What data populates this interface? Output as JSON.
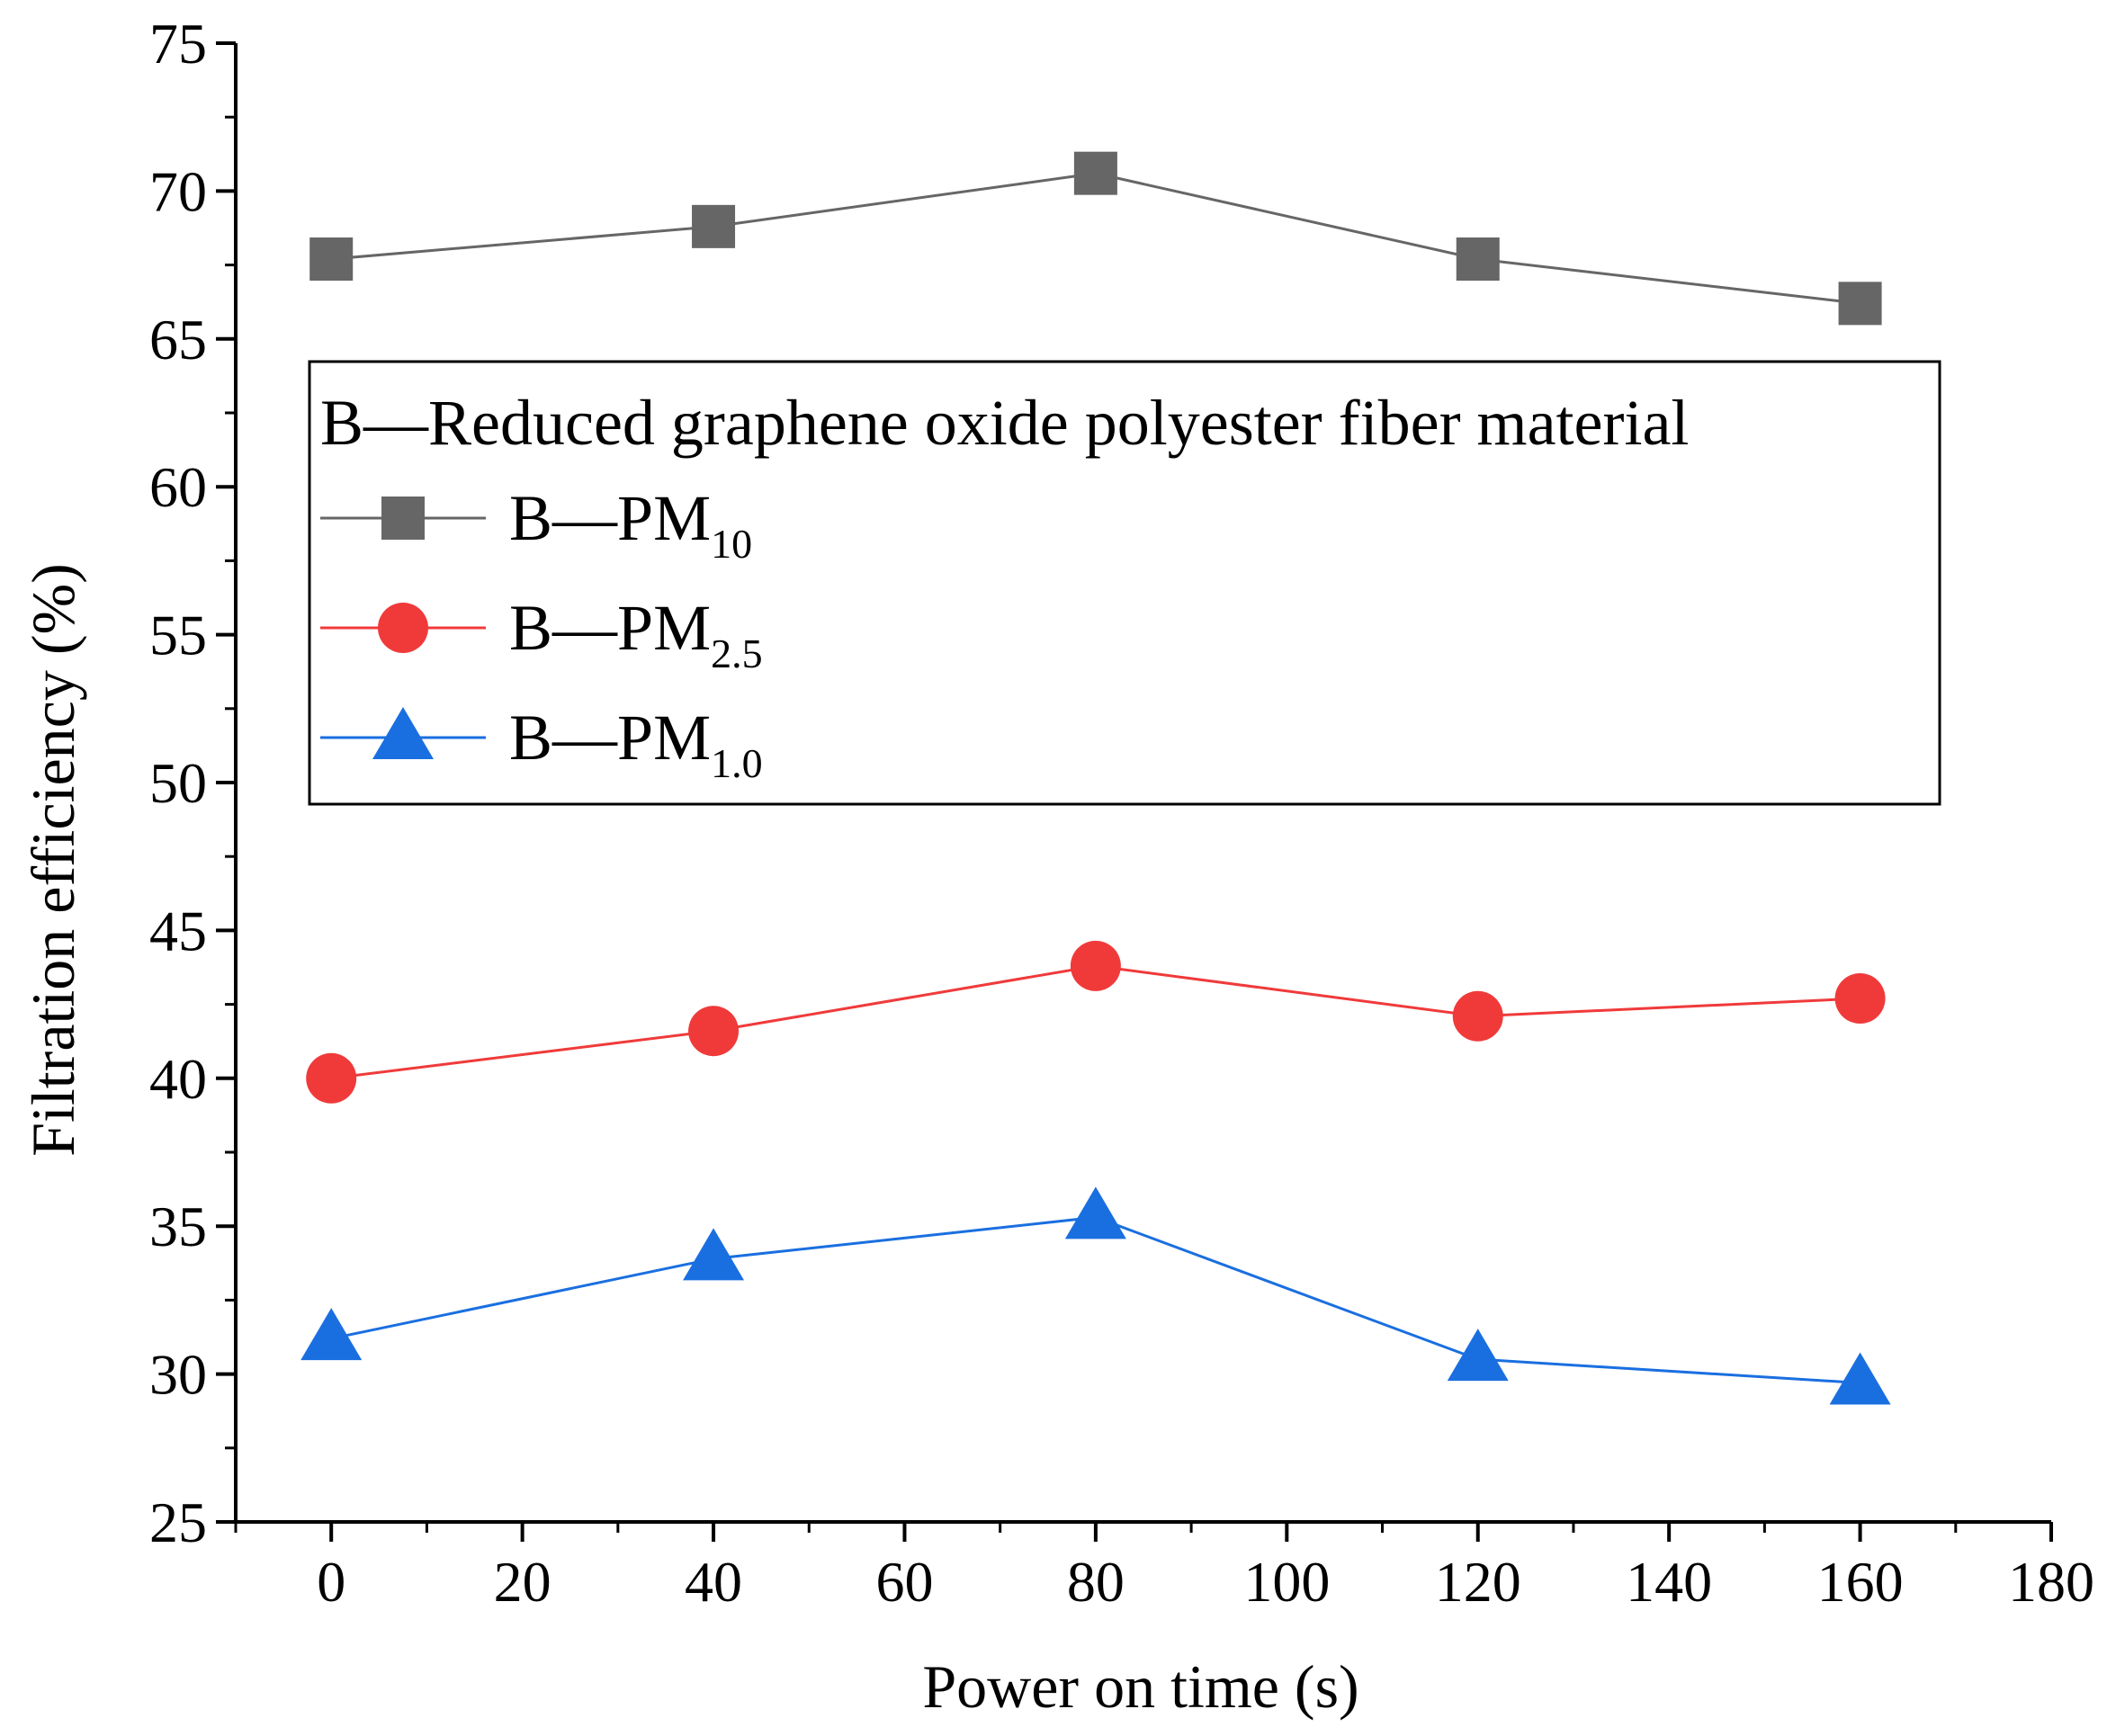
{
  "chart_data": {
    "type": "line",
    "title": "",
    "xlabel": "Power on time (s)",
    "ylabel": "Filtration efficiency (%)",
    "xlim": [
      -10,
      180
    ],
    "ylim": [
      25,
      75
    ],
    "xticks": [
      0,
      20,
      40,
      60,
      80,
      100,
      120,
      140,
      160,
      180
    ],
    "yticks": [
      25,
      30,
      35,
      40,
      45,
      50,
      55,
      60,
      65,
      70,
      75
    ],
    "x": [
      0,
      40,
      80,
      120,
      160
    ],
    "legend": {
      "title": "B—Reduced graphene oxide polyester fiber material",
      "position": "upper-middle"
    },
    "series": [
      {
        "name": "B—PM10",
        "label_main": "B—PM",
        "label_sub": "10",
        "color": "#666666",
        "marker": "square",
        "values": [
          67.7,
          68.8,
          70.6,
          67.7,
          66.2
        ]
      },
      {
        "name": "B—PM2.5",
        "label_main": "B—PM",
        "label_sub": "2.5",
        "color": "#f03a3a",
        "marker": "circle",
        "values": [
          40.0,
          41.6,
          43.8,
          42.1,
          42.7
        ]
      },
      {
        "name": "B—PM1.0",
        "label_main": "B—PM",
        "label_sub": "1.0",
        "color": "#1a6fe0",
        "marker": "triangle",
        "values": [
          31.2,
          33.9,
          35.3,
          30.5,
          29.7
        ]
      }
    ]
  }
}
